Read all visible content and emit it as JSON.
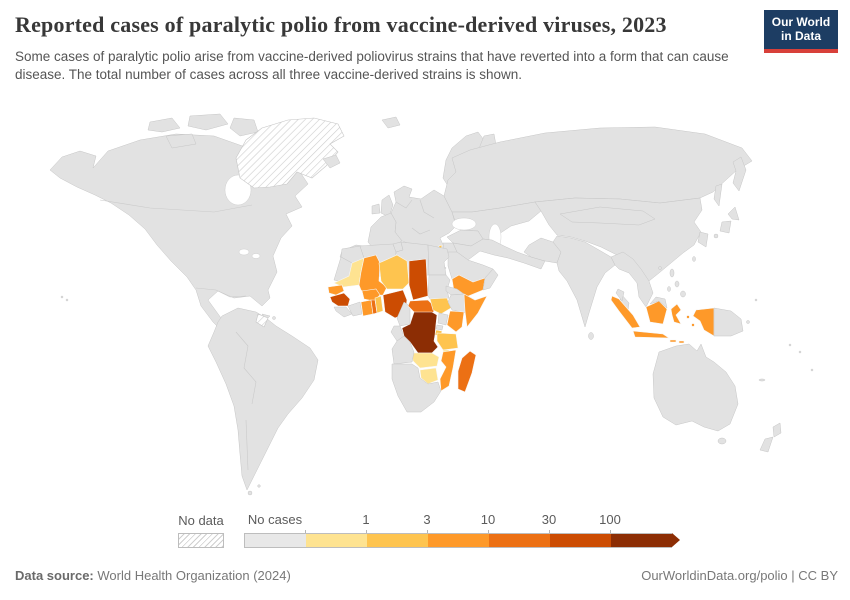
{
  "header": {
    "title": "Reported cases of paralytic polio from vaccine-derived viruses, 2023",
    "subtitle": "Some cases of paralytic polio arise from vaccine-derived poliovirus strains that have reverted into a form that can cause disease. The total number of cases across all three vaccine-derived strains is shown.",
    "logo_line1": "Our World",
    "logo_line2": "in Data"
  },
  "footer": {
    "source_label": "Data source:",
    "source_value": "World Health Organization (2024)",
    "attribution": "OurWorldinData.org/polio | CC BY"
  },
  "colors": {
    "logo_navy": "#1d3d63",
    "logo_red": "#d8403a",
    "land_no_cases": "#e2e2e2",
    "title_text": "#383838",
    "subtitle_text": "#555555",
    "footer_text": "#787878"
  },
  "chart_data": {
    "type": "choropleth_map",
    "title": "Reported cases of paralytic polio from vaccine-derived viruses, 2023",
    "unit": "reported cases of vaccine-derived paralytic polio",
    "year": "2023",
    "projection": "world equirectangular",
    "legend": {
      "no_data_label": "No data",
      "no_cases_label": "No cases",
      "tick_labels": [
        "1",
        "3",
        "10",
        "30",
        "100"
      ],
      "bins": [
        {
          "id": "no-data",
          "label": "No data",
          "color": "hatch"
        },
        {
          "id": "no-cases",
          "label": "No cases",
          "color": "#e8e8e8"
        },
        {
          "id": "0-1",
          "label": "up to 1",
          "color": "#fee391"
        },
        {
          "id": "1-3",
          "label": "1 to 3",
          "color": "#fec44f"
        },
        {
          "id": "3-10",
          "label": "3 to 10",
          "color": "#fe9929"
        },
        {
          "id": "10-30",
          "label": "10 to 30",
          "color": "#ec7014"
        },
        {
          "id": "30-100",
          "label": "30 to 100",
          "color": "#cc4c02"
        },
        {
          "id": "100+",
          "label": "100 and more",
          "color": "#8c2d04"
        }
      ]
    },
    "countries": [
      {
        "name": "Democratic Republic of Congo",
        "bin": "100+"
      },
      {
        "name": "Nigeria",
        "bin": "30-100"
      },
      {
        "name": "Chad",
        "bin": "30-100"
      },
      {
        "name": "Guinea",
        "bin": "30-100"
      },
      {
        "name": "Central African Republic",
        "bin": "10-30"
      },
      {
        "name": "Madagascar",
        "bin": "10-30"
      },
      {
        "name": "Togo",
        "bin": "10-30"
      },
      {
        "name": "Mali",
        "bin": "3-10"
      },
      {
        "name": "Senegal",
        "bin": "3-10"
      },
      {
        "name": "Burkina Faso",
        "bin": "3-10"
      },
      {
        "name": "Ghana",
        "bin": "3-10"
      },
      {
        "name": "Somalia",
        "bin": "3-10"
      },
      {
        "name": "Kenya",
        "bin": "3-10"
      },
      {
        "name": "Mozambique",
        "bin": "3-10"
      },
      {
        "name": "Yemen",
        "bin": "3-10"
      },
      {
        "name": "Indonesia",
        "bin": "3-10"
      },
      {
        "name": "Benin",
        "bin": "1-3"
      },
      {
        "name": "Niger",
        "bin": "1-3"
      },
      {
        "name": "South Sudan",
        "bin": "1-3"
      },
      {
        "name": "Tanzania",
        "bin": "1-3"
      },
      {
        "name": "Burundi",
        "bin": "1-3"
      },
      {
        "name": "Israel",
        "bin": "1-3"
      },
      {
        "name": "Mauritania",
        "bin": "0-1"
      },
      {
        "name": "Zambia",
        "bin": "0-1"
      },
      {
        "name": "Zimbabwe",
        "bin": "0-1"
      },
      {
        "name": "Malawi",
        "bin": "0-1"
      },
      {
        "name": "Greenland",
        "bin": "no-data"
      },
      {
        "name": "French Guiana",
        "bin": "no-data"
      }
    ],
    "all_other_countries": "no-cases"
  }
}
